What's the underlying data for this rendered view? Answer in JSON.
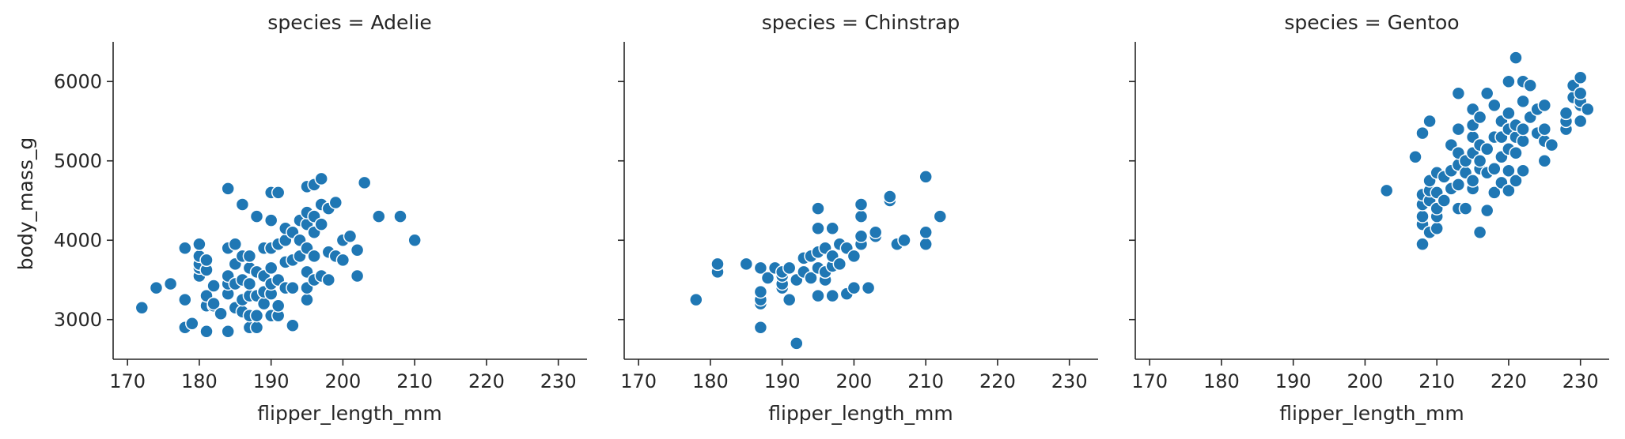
{
  "colors": {
    "points": "#1f77b4",
    "point_edge": "#ffffff",
    "axes": "#262626"
  },
  "chart_data": [
    {
      "type": "scatter",
      "title": "species = Adelie",
      "xlabel": "flipper_length_mm",
      "ylabel": "body_mass_g",
      "xlim": [
        168,
        234
      ],
      "ylim": [
        2500,
        6500
      ],
      "xticks": [
        "170",
        "180",
        "190",
        "200",
        "210",
        "220",
        "230"
      ],
      "yticks": [
        "3000",
        "4000",
        "5000",
        "6000"
      ],
      "grid": false,
      "points": [
        [
          172,
          3150
        ],
        [
          174,
          3400
        ],
        [
          176,
          3450
        ],
        [
          178,
          2900
        ],
        [
          178,
          3250
        ],
        [
          178,
          3900
        ],
        [
          179,
          2950
        ],
        [
          180,
          3550
        ],
        [
          180,
          3650
        ],
        [
          180,
          3700
        ],
        [
          180,
          3800
        ],
        [
          180,
          3950
        ],
        [
          181,
          2850
        ],
        [
          181,
          3175
        ],
        [
          181,
          3300
        ],
        [
          181,
          3625
        ],
        [
          181,
          3750
        ],
        [
          182,
          3175
        ],
        [
          182,
          3200
        ],
        [
          182,
          3425
        ],
        [
          183,
          3075
        ],
        [
          184,
          2850
        ],
        [
          184,
          3325
        ],
        [
          184,
          3450
        ],
        [
          184,
          3550
        ],
        [
          184,
          3900
        ],
        [
          184,
          4650
        ],
        [
          185,
          3150
        ],
        [
          185,
          3450
        ],
        [
          185,
          3700
        ],
        [
          185,
          3950
        ],
        [
          186,
          3100
        ],
        [
          186,
          3250
        ],
        [
          186,
          3500
        ],
        [
          186,
          3800
        ],
        [
          186,
          4450
        ],
        [
          187,
          2900
        ],
        [
          187,
          3050
        ],
        [
          187,
          3300
        ],
        [
          187,
          3450
        ],
        [
          187,
          3650
        ],
        [
          187,
          3800
        ],
        [
          188,
          2900
        ],
        [
          188,
          3050
        ],
        [
          188,
          3300
        ],
        [
          188,
          3600
        ],
        [
          188,
          4300
        ],
        [
          189,
          3200
        ],
        [
          189,
          3350
        ],
        [
          189,
          3550
        ],
        [
          189,
          3900
        ],
        [
          190,
          3050
        ],
        [
          190,
          3325
        ],
        [
          190,
          3450
        ],
        [
          190,
          3650
        ],
        [
          190,
          3900
        ],
        [
          190,
          4250
        ],
        [
          190,
          4600
        ],
        [
          191,
          3050
        ],
        [
          191,
          3175
        ],
        [
          191,
          3500
        ],
        [
          191,
          3950
        ],
        [
          191,
          4600
        ],
        [
          192,
          3400
        ],
        [
          192,
          3725
        ],
        [
          192,
          4000
        ],
        [
          192,
          4150
        ],
        [
          193,
          2925
        ],
        [
          193,
          3400
        ],
        [
          193,
          3750
        ],
        [
          193,
          4100
        ],
        [
          194,
          3800
        ],
        [
          194,
          4000
        ],
        [
          194,
          4250
        ],
        [
          195,
          3250
        ],
        [
          195,
          3400
        ],
        [
          195,
          3600
        ],
        [
          195,
          3900
        ],
        [
          195,
          4200
        ],
        [
          195,
          4350
        ],
        [
          195,
          4675
        ],
        [
          196,
          3500
        ],
        [
          196,
          3800
        ],
        [
          196,
          4100
        ],
        [
          196,
          4300
        ],
        [
          196,
          4700
        ],
        [
          197,
          3550
        ],
        [
          197,
          4200
        ],
        [
          197,
          4450
        ],
        [
          197,
          4775
        ],
        [
          198,
          3500
        ],
        [
          198,
          3850
        ],
        [
          198,
          4400
        ],
        [
          199,
          3800
        ],
        [
          199,
          4475
        ],
        [
          200,
          3750
        ],
        [
          200,
          4000
        ],
        [
          201,
          4050
        ],
        [
          202,
          3550
        ],
        [
          202,
          3875
        ],
        [
          203,
          4725
        ],
        [
          205,
          4300
        ],
        [
          208,
          4300
        ],
        [
          210,
          4000
        ]
      ]
    },
    {
      "type": "scatter",
      "title": "species = Chinstrap",
      "xlabel": "flipper_length_mm",
      "ylabel": "",
      "xlim": [
        168,
        234
      ],
      "ylim": [
        2500,
        6500
      ],
      "xticks": [
        "170",
        "180",
        "190",
        "200",
        "210",
        "220",
        "230"
      ],
      "yticks": [],
      "grid": false,
      "points": [
        [
          178,
          3250
        ],
        [
          181,
          3600
        ],
        [
          181,
          3700
        ],
        [
          185,
          3700
        ],
        [
          187,
          2900
        ],
        [
          187,
          3200
        ],
        [
          187,
          3250
        ],
        [
          187,
          3350
        ],
        [
          187,
          3650
        ],
        [
          188,
          3525
        ],
        [
          189,
          3650
        ],
        [
          190,
          3400
        ],
        [
          190,
          3450
        ],
        [
          190,
          3550
        ],
        [
          190,
          3600
        ],
        [
          191,
          3250
        ],
        [
          191,
          3650
        ],
        [
          192,
          2700
        ],
        [
          192,
          3500
        ],
        [
          193,
          3600
        ],
        [
          193,
          3775
        ],
        [
          194,
          3525
        ],
        [
          194,
          3800
        ],
        [
          195,
          3300
        ],
        [
          195,
          3650
        ],
        [
          195,
          3850
        ],
        [
          195,
          4150
        ],
        [
          195,
          4400
        ],
        [
          196,
          3500
        ],
        [
          196,
          3600
        ],
        [
          196,
          3900
        ],
        [
          197,
          3300
        ],
        [
          197,
          3675
        ],
        [
          197,
          3800
        ],
        [
          197,
          4150
        ],
        [
          198,
          3700
        ],
        [
          198,
          3950
        ],
        [
          199,
          3325
        ],
        [
          199,
          3900
        ],
        [
          200,
          3400
        ],
        [
          200,
          3800
        ],
        [
          201,
          3950
        ],
        [
          201,
          4050
        ],
        [
          201,
          4300
        ],
        [
          201,
          4450
        ],
        [
          202,
          3400
        ],
        [
          203,
          4050
        ],
        [
          203,
          4100
        ],
        [
          205,
          4500
        ],
        [
          205,
          4550
        ],
        [
          206,
          3950
        ],
        [
          207,
          4000
        ],
        [
          210,
          3950
        ],
        [
          210,
          4100
        ],
        [
          210,
          4800
        ],
        [
          212,
          4300
        ]
      ]
    },
    {
      "type": "scatter",
      "title": "species = Gentoo",
      "xlabel": "flipper_length_mm",
      "ylabel": "",
      "xlim": [
        168,
        234
      ],
      "ylim": [
        2500,
        6500
      ],
      "xticks": [
        "170",
        "180",
        "190",
        "200",
        "210",
        "220",
        "230"
      ],
      "yticks": [],
      "grid": false,
      "points": [
        [
          203,
          4625
        ],
        [
          207,
          5050
        ],
        [
          208,
          3950
        ],
        [
          208,
          4200
        ],
        [
          208,
          4300
        ],
        [
          208,
          4450
        ],
        [
          208,
          4575
        ],
        [
          208,
          5350
        ],
        [
          209,
          4100
        ],
        [
          209,
          4500
        ],
        [
          209,
          4625
        ],
        [
          209,
          4750
        ],
        [
          209,
          5500
        ],
        [
          210,
          4150
        ],
        [
          210,
          4300
        ],
        [
          210,
          4400
        ],
        [
          210,
          4600
        ],
        [
          210,
          4850
        ],
        [
          211,
          4500
        ],
        [
          211,
          4800
        ],
        [
          212,
          4650
        ],
        [
          212,
          4875
        ],
        [
          212,
          5200
        ],
        [
          213,
          4400
        ],
        [
          213,
          4700
        ],
        [
          213,
          4950
        ],
        [
          213,
          5100
        ],
        [
          213,
          5400
        ],
        [
          213,
          5850
        ],
        [
          214,
          4400
        ],
        [
          214,
          4850
        ],
        [
          214,
          5000
        ],
        [
          215,
          4650
        ],
        [
          215,
          4750
        ],
        [
          215,
          5100
        ],
        [
          215,
          5300
        ],
        [
          215,
          5450
        ],
        [
          215,
          5650
        ],
        [
          216,
          4900
        ],
        [
          216,
          5000
        ],
        [
          216,
          5200
        ],
        [
          216,
          5550
        ],
        [
          216,
          4100
        ],
        [
          217,
          4375
        ],
        [
          217,
          4850
        ],
        [
          217,
          5150
        ],
        [
          217,
          5850
        ],
        [
          218,
          4600
        ],
        [
          218,
          4900
        ],
        [
          218,
          5300
        ],
        [
          218,
          5700
        ],
        [
          219,
          4725
        ],
        [
          219,
          5050
        ],
        [
          219,
          5300
        ],
        [
          219,
          5500
        ],
        [
          220,
          4625
        ],
        [
          220,
          4875
        ],
        [
          220,
          5150
        ],
        [
          220,
          5400
        ],
        [
          220,
          5600
        ],
        [
          220,
          6000
        ],
        [
          221,
          4750
        ],
        [
          221,
          5100
        ],
        [
          221,
          5300
        ],
        [
          221,
          5450
        ],
        [
          221,
          6300
        ],
        [
          222,
          4875
        ],
        [
          222,
          5250
        ],
        [
          222,
          5400
        ],
        [
          222,
          5750
        ],
        [
          222,
          6000
        ],
        [
          223,
          5550
        ],
        [
          223,
          5950
        ],
        [
          224,
          5350
        ],
        [
          224,
          5650
        ],
        [
          225,
          5000
        ],
        [
          225,
          5250
        ],
        [
          225,
          5400
        ],
        [
          225,
          5700
        ],
        [
          226,
          5200
        ],
        [
          228,
          5400
        ],
        [
          228,
          5500
        ],
        [
          228,
          5600
        ],
        [
          229,
          5800
        ],
        [
          229,
          5950
        ],
        [
          230,
          5500
        ],
        [
          230,
          5700
        ],
        [
          230,
          5750
        ],
        [
          230,
          5850
        ],
        [
          230,
          6050
        ],
        [
          231,
          5650
        ]
      ]
    }
  ]
}
